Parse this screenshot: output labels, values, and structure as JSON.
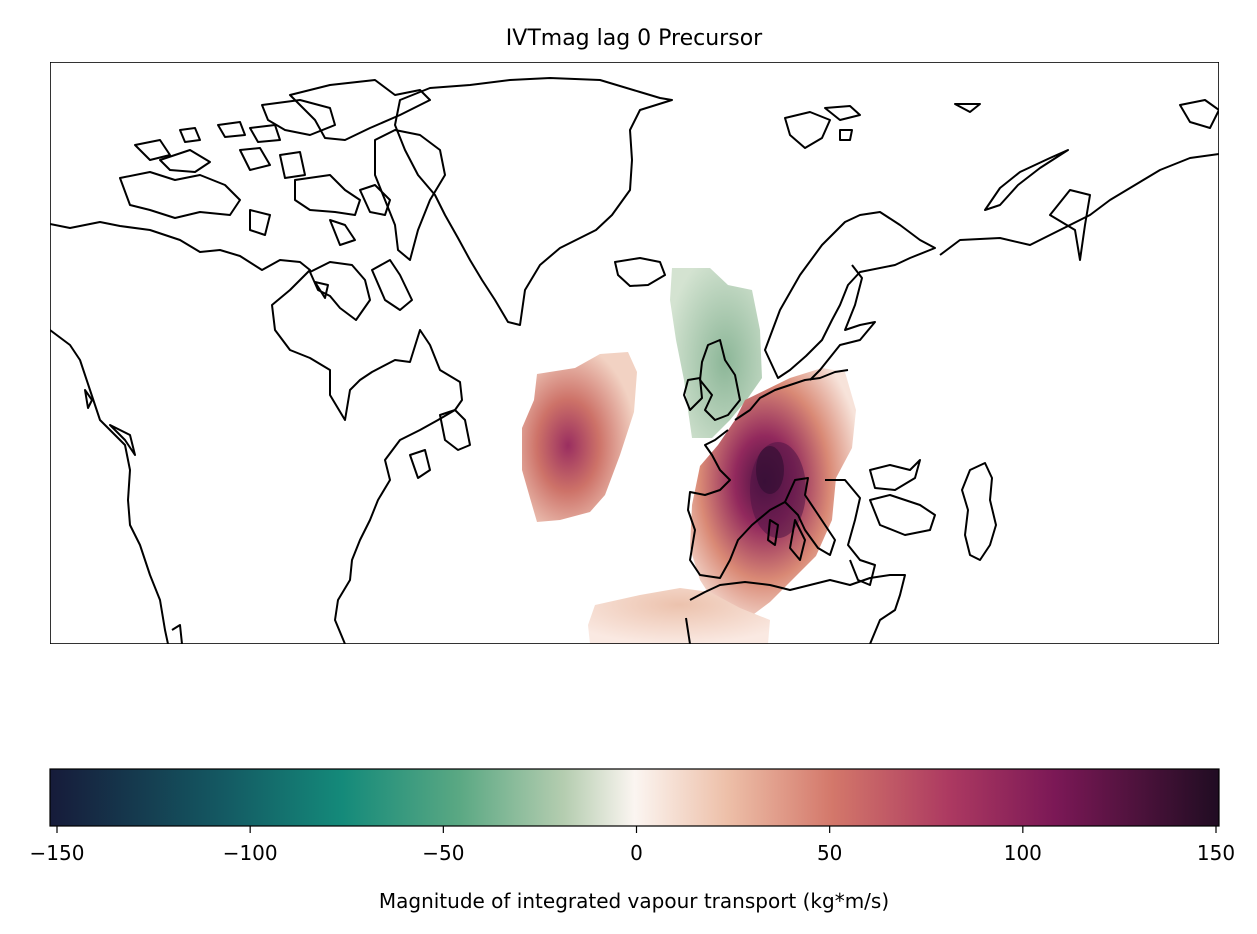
{
  "title": "IVTmag lag 0 Precursor",
  "colorbar": {
    "label": "Magnitude of integrated vapour transport (kg*m/s)",
    "min": -150,
    "max": 150,
    "ticks": [
      -150,
      -100,
      -50,
      0,
      50,
      100,
      150
    ],
    "tick_labels": [
      "−150",
      "−100",
      "−50",
      "0",
      "50",
      "100",
      "150"
    ],
    "colormap": [
      "#161b3a",
      "#145a63",
      "#148a7a",
      "#5aa883",
      "#b5cdb0",
      "#f2efe7",
      "#fbf0ec",
      "#edbfa8",
      "#d3776a",
      "#ac3961",
      "#7b1856",
      "#3a0f35",
      "#200c22"
    ]
  },
  "map": {
    "projection": "PlateCarree",
    "extent_lon": [
      -180,
      60
    ],
    "extent_lat": [
      10,
      90
    ],
    "coastline_color": "#000000"
  },
  "anomaly_fields": [
    {
      "region": "mid-Atlantic",
      "sign": "positive",
      "peak_value": 90
    },
    {
      "region": "Western Europe / Mediterranean",
      "sign": "positive",
      "peak_value": 140
    },
    {
      "region": "British Isles / North Sea",
      "sign": "negative",
      "peak_value": -40
    },
    {
      "region": "Northwest Africa",
      "sign": "positive",
      "peak_value": 30
    }
  ]
}
